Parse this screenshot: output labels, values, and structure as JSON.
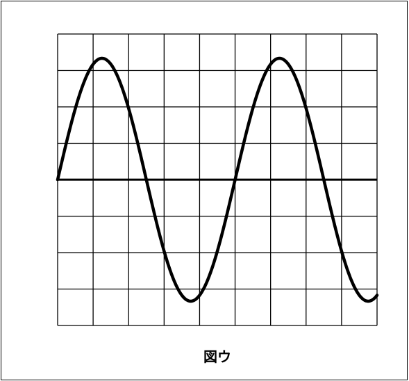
{
  "figure": {
    "caption": "図ウ"
  }
}
